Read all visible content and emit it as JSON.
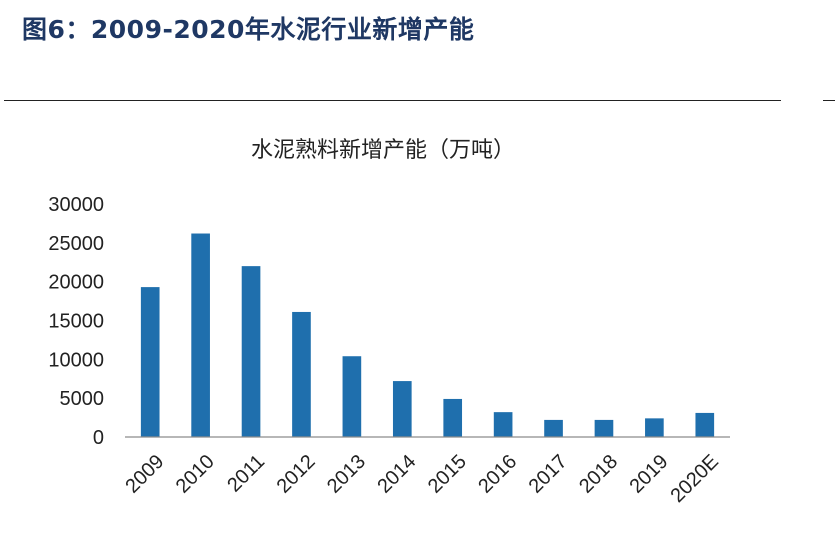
{
  "figure": {
    "title": "图6：2009-2020年水泥行业新增产能"
  },
  "chart_data": {
    "type": "bar",
    "title": "水泥熟料新增产能（万吨）",
    "xlabel": "",
    "ylabel": "",
    "categories": [
      "2009",
      "2010",
      "2011",
      "2012",
      "2013",
      "2014",
      "2015",
      "2016",
      "2017",
      "2018",
      "2019",
      "2020E"
    ],
    "values": [
      19300,
      26200,
      22000,
      16100,
      10400,
      7200,
      4900,
      3200,
      2200,
      2200,
      2400,
      3100
    ],
    "ylim": [
      0,
      30000
    ],
    "yticks": [
      0,
      5000,
      10000,
      15000,
      20000,
      25000,
      30000
    ],
    "bar_color": "#1f6fad",
    "grid": false,
    "legend": "none"
  }
}
